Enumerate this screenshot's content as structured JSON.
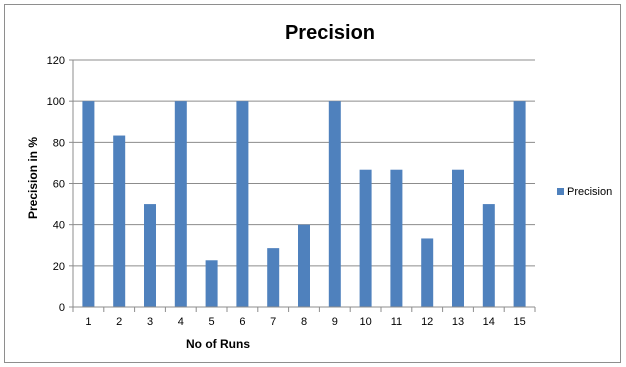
{
  "chart_data": {
    "type": "bar",
    "title": "Precision",
    "xlabel": "No of Runs",
    "ylabel": "Precision in %",
    "categories": [
      "1",
      "2",
      "3",
      "4",
      "5",
      "6",
      "7",
      "8",
      "9",
      "10",
      "11",
      "12",
      "13",
      "14",
      "15"
    ],
    "series": [
      {
        "name": "Precision",
        "values": [
          100,
          83.3,
          50,
          100,
          22.7,
          100,
          28.6,
          40,
          100,
          66.7,
          66.7,
          33.3,
          66.7,
          50,
          100
        ],
        "color": "#4f81bd"
      }
    ],
    "ylim": [
      0,
      120
    ],
    "yticks": [
      0,
      20,
      40,
      60,
      80,
      100,
      120
    ],
    "grid": true,
    "legend_position": "right"
  }
}
